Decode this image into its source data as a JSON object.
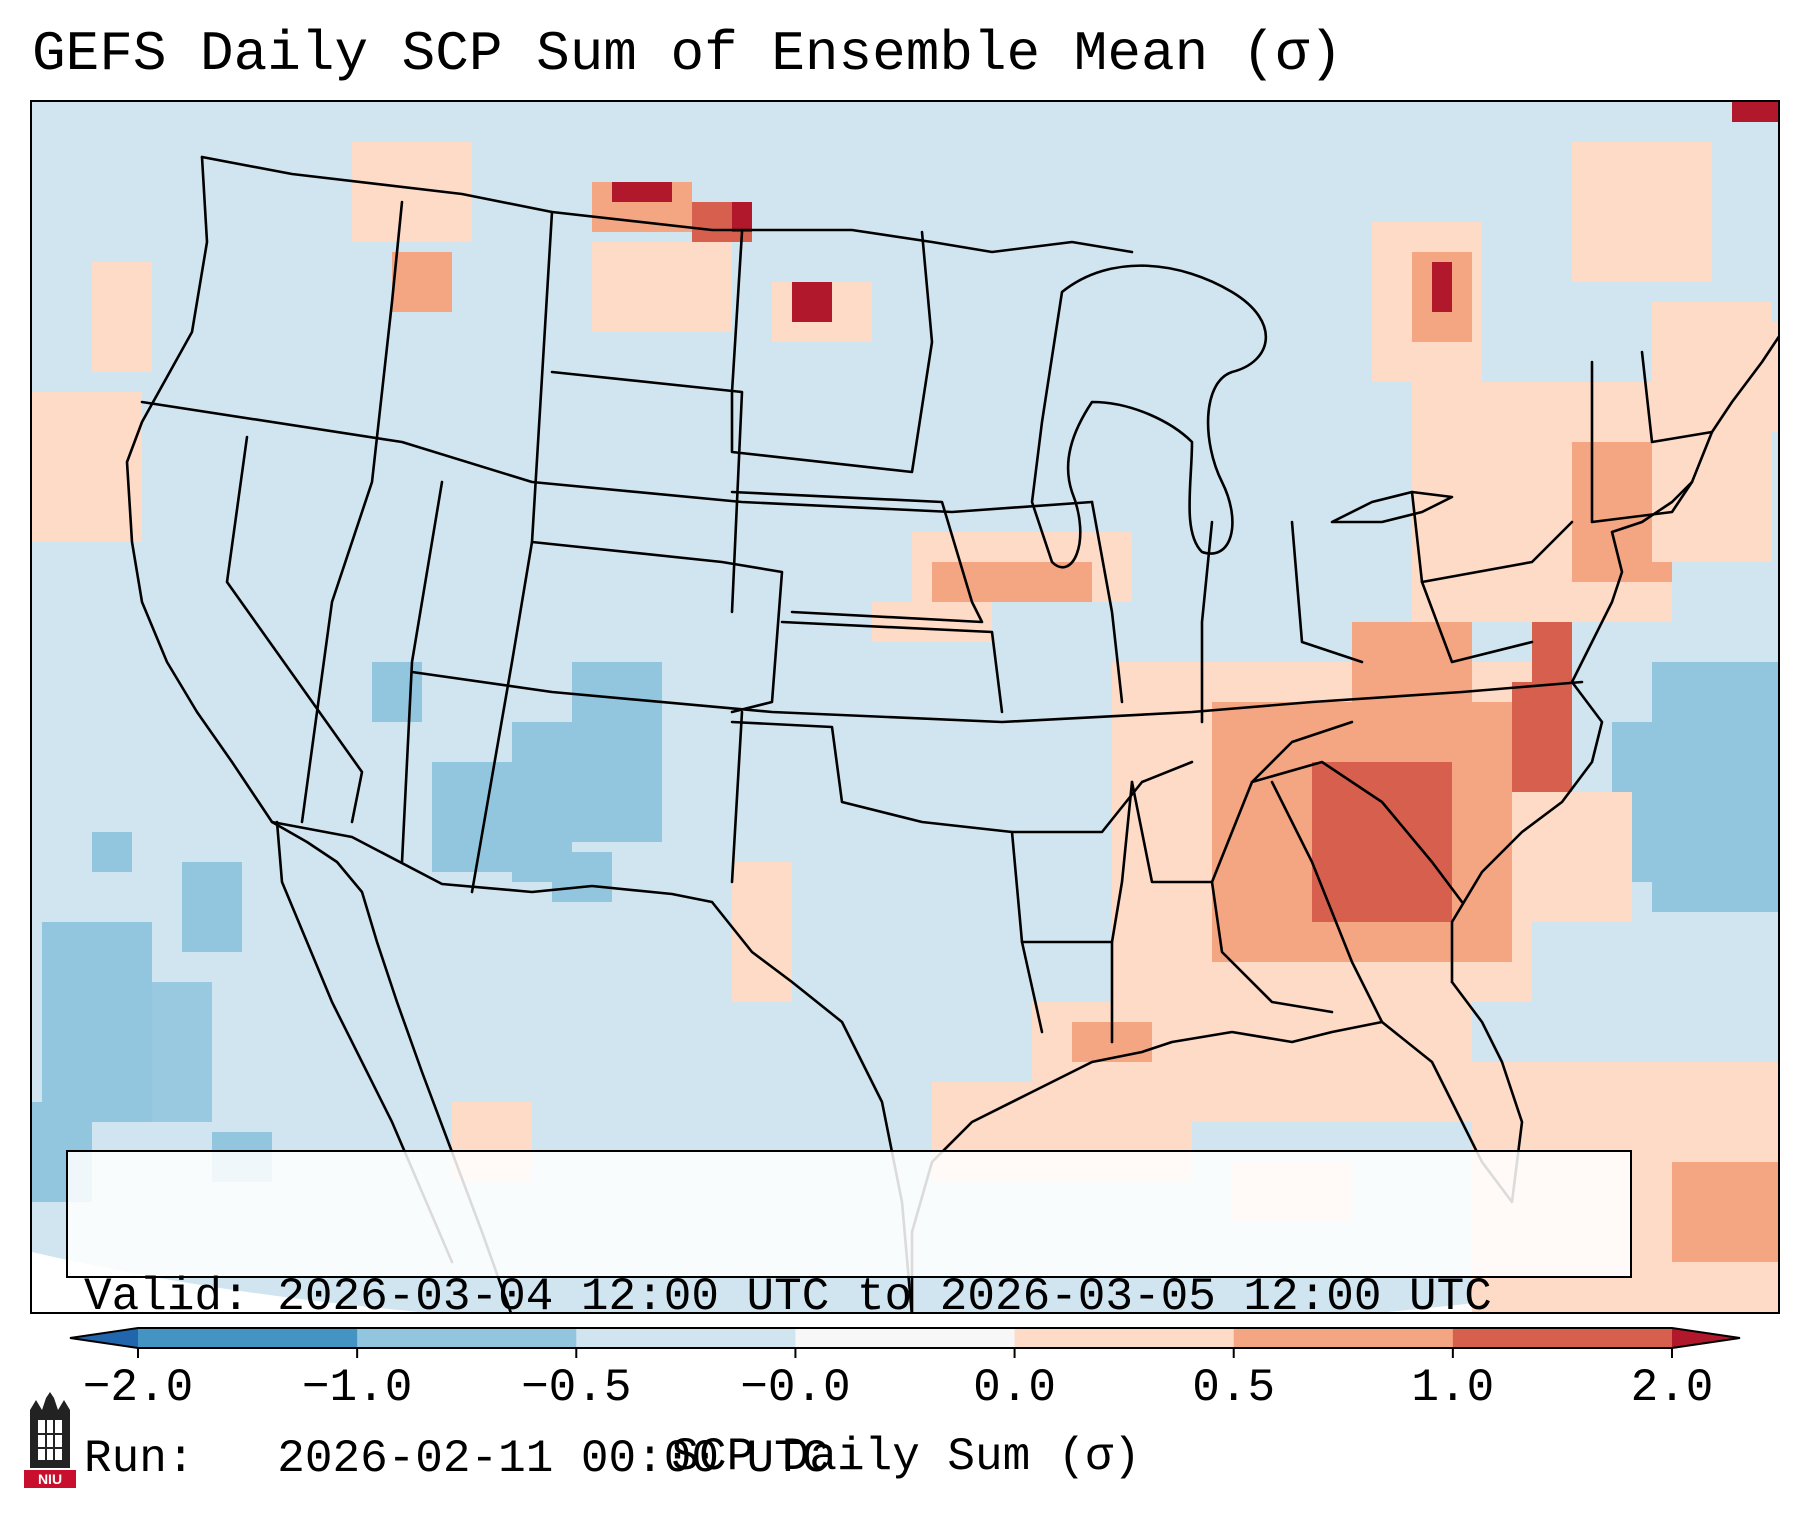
{
  "title": "GEFS Daily SCP Sum of Ensemble Mean (σ)",
  "valid_box": {
    "valid_label": "Valid:",
    "valid_value": "2026-03-04 12:00 UTC to 2026-03-05 12:00 UTC",
    "run_label": "Run:",
    "run_value": "2026-02-11 00:00 UTC"
  },
  "colorbar": {
    "label": "SCP Daily Sum (σ)",
    "tick_labels": [
      "−2.0",
      "−1.0",
      "−0.5",
      "−0.0",
      "0.0",
      "0.5",
      "1.0",
      "2.0"
    ],
    "bins": [
      {
        "range": "< -2.0",
        "color": "#2166ac"
      },
      {
        "range": "-2.0 to -1.0",
        "color": "#4393c3"
      },
      {
        "range": "-1.0 to -0.5",
        "color": "#92c5de"
      },
      {
        "range": "-0.5 to -0.0",
        "color": "#d1e5f0"
      },
      {
        "range": "-0.0 to 0.0",
        "color": "#f7f7f7"
      },
      {
        "range": "0.0 to 0.5",
        "color": "#fddbc7"
      },
      {
        "range": "0.5 to 1.0",
        "color": "#f4a582"
      },
      {
        "range": "1.0 to 2.0",
        "color": "#d6604d"
      },
      {
        "range": "> 2.0",
        "color": "#b2182b"
      }
    ]
  },
  "logo": {
    "text": "NIU",
    "color": "#c8102e"
  }
}
